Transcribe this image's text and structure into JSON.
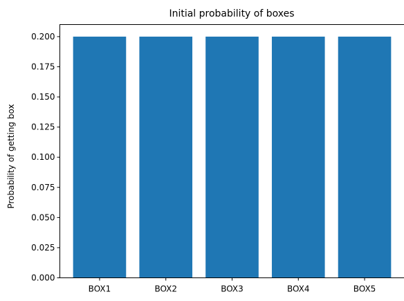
{
  "chart_data": {
    "type": "bar",
    "title": "Initial probability of boxes",
    "xlabel": "",
    "ylabel": "Probability of getting box",
    "categories": [
      "BOX1",
      "BOX2",
      "BOX3",
      "BOX4",
      "BOX5"
    ],
    "values": [
      0.2,
      0.2,
      0.2,
      0.2,
      0.2
    ],
    "ylim": [
      0,
      0.21
    ],
    "yticks": [
      "0.000",
      "0.025",
      "0.050",
      "0.075",
      "0.100",
      "0.125",
      "0.150",
      "0.175",
      "0.200"
    ],
    "bar_color": "#1f77b4",
    "grid": false,
    "legend": "none"
  }
}
